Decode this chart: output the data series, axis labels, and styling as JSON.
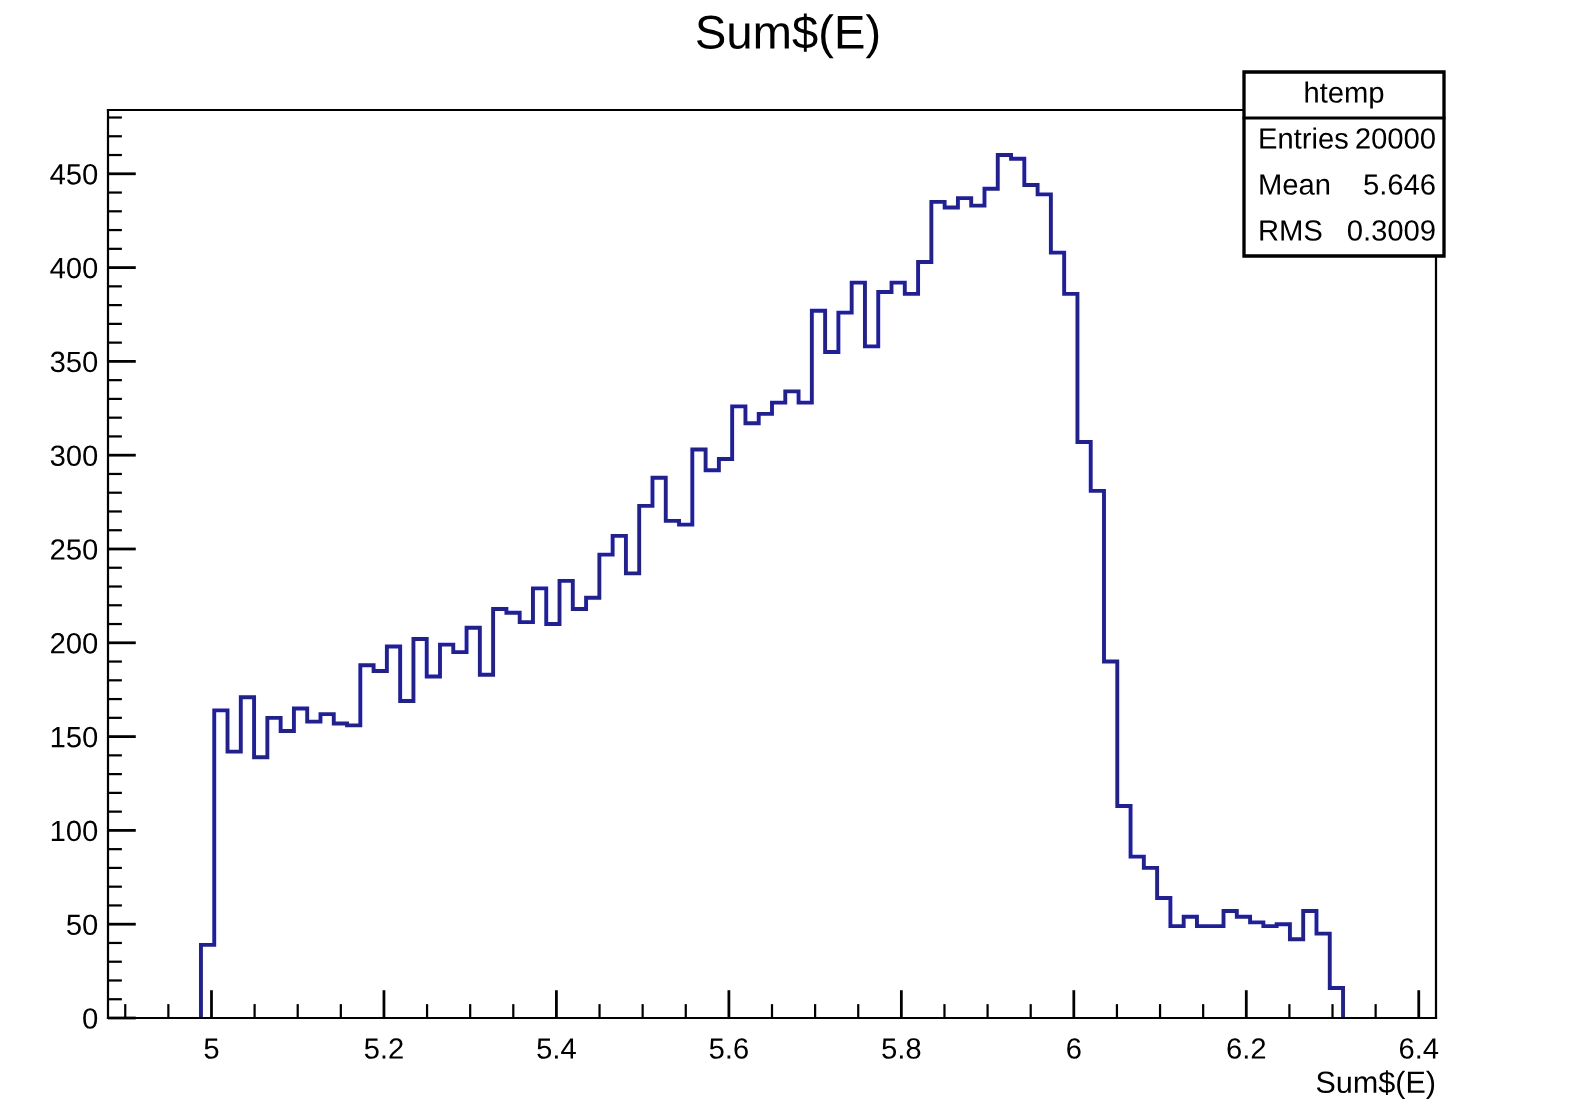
{
  "chart_data": {
    "type": "histogram",
    "title": "Sum$(E)",
    "xlabel": "Sum$(E)",
    "bins": [
      4.9878,
      5.0032,
      5.0186,
      5.034,
      5.0494,
      5.0648,
      5.0802,
      5.0956,
      5.111,
      5.1264,
      5.1418,
      5.1572,
      5.1726,
      5.188,
      5.2034,
      5.2188,
      5.2342,
      5.2496,
      5.265,
      5.2804,
      5.2958,
      5.3112,
      5.3266,
      5.342,
      5.3574,
      5.3728,
      5.3882,
      5.4036,
      5.419,
      5.4344,
      5.4498,
      5.4652,
      5.4806,
      5.496,
      5.5114,
      5.5268,
      5.5422,
      5.5576,
      5.573,
      5.5884,
      5.6038,
      5.6192,
      5.6346,
      5.65,
      5.6654,
      5.6808,
      5.6962,
      5.7116,
      5.727,
      5.7424,
      5.7578,
      5.7732,
      5.7886,
      5.804,
      5.8194,
      5.8348,
      5.8502,
      5.8656,
      5.881,
      5.8964,
      5.9118,
      5.9272,
      5.9426,
      5.958,
      5.9734,
      5.9888,
      6.0042,
      6.0196,
      6.035,
      6.0504,
      6.0658,
      6.0812,
      6.0966,
      6.112,
      6.1274,
      6.1428,
      6.1582,
      6.1736,
      6.189,
      6.2044,
      6.2198,
      6.2352,
      6.2506,
      6.266,
      6.2814,
      6.2968,
      6.3122
    ],
    "values": [
      39,
      164,
      142,
      171,
      139,
      160,
      153,
      165,
      158,
      162,
      157,
      156,
      188,
      185,
      198,
      169,
      202,
      182,
      199,
      195,
      208,
      183,
      218,
      216,
      211,
      229,
      210,
      233,
      218,
      224,
      247,
      257,
      237,
      273,
      288,
      265,
      263,
      303,
      292,
      298,
      326,
      317,
      322,
      328,
      334,
      328,
      377,
      355,
      376,
      392,
      358,
      387,
      392,
      386,
      403,
      435,
      432,
      437,
      433,
      442,
      460,
      458,
      444,
      439,
      408,
      386,
      307,
      281,
      190,
      113,
      86,
      80,
      64,
      49,
      54,
      49,
      49,
      57,
      54,
      51,
      49,
      50,
      42,
      57,
      45,
      16
    ],
    "color": "#1f1f9e",
    "xlim": [
      4.88,
      6.42
    ],
    "xticks": [
      5,
      5.2,
      5.4,
      5.6,
      5.8,
      6,
      6.2,
      6.4
    ],
    "ylim": [
      0,
      484
    ],
    "yticks": [
      0,
      50,
      100,
      150,
      200,
      250,
      300,
      350,
      400,
      450
    ],
    "grid": false,
    "annotations": [
      "htemp",
      "Entries",
      "20000",
      "Mean",
      "5.646",
      "RMS",
      "0.3009"
    ]
  }
}
